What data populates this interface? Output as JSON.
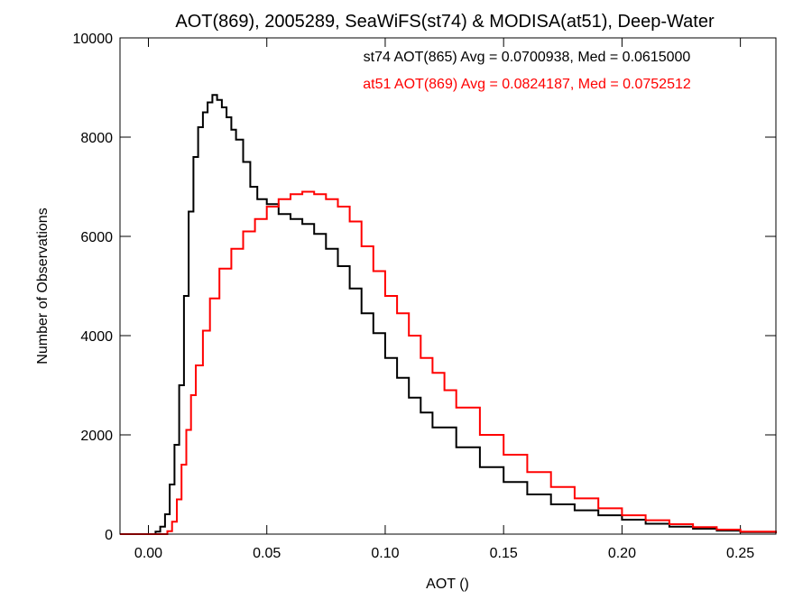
{
  "chart_data": {
    "type": "line",
    "title": "AOT(869), 2005289, SeaWiFS(st74) & MODISA(at51), Deep-Water",
    "xlabel": "AOT ()",
    "ylabel": "Number of Observations",
    "xlim": [
      -0.012,
      0.265
    ],
    "ylim": [
      0,
      10000
    ],
    "xticks": [
      0.0,
      0.05,
      0.1,
      0.15,
      0.2,
      0.25
    ],
    "xtick_labels": [
      "0.00",
      "0.05",
      "0.10",
      "0.15",
      "0.20",
      "0.25"
    ],
    "yticks": [
      0,
      2000,
      4000,
      6000,
      8000,
      10000
    ],
    "ytick_labels": [
      "0",
      "2000",
      "4000",
      "6000",
      "8000",
      "10000"
    ],
    "grid": false,
    "legend_placement": "top-center",
    "annotations": [
      {
        "text": "st74 AOT(865) Avg = 0.0700938, Med = 0.0615000",
        "color": "#000000"
      },
      {
        "text": "at51 AOT(869) Avg = 0.0824187, Med = 0.0752512",
        "color": "#ff0000"
      }
    ],
    "series": [
      {
        "color": "#000000",
        "x": [
          -0.012,
          0.0,
          0.003,
          0.005,
          0.007,
          0.009,
          0.011,
          0.013,
          0.015,
          0.017,
          0.019,
          0.021,
          0.023,
          0.025,
          0.027,
          0.029,
          0.031,
          0.033,
          0.035,
          0.037,
          0.04,
          0.043,
          0.046,
          0.05,
          0.055,
          0.06,
          0.065,
          0.07,
          0.075,
          0.08,
          0.085,
          0.09,
          0.095,
          0.1,
          0.105,
          0.11,
          0.115,
          0.12,
          0.13,
          0.14,
          0.15,
          0.16,
          0.17,
          0.18,
          0.19,
          0.2,
          0.21,
          0.22,
          0.23,
          0.24,
          0.25,
          0.265
        ],
        "y": [
          0,
          0,
          50,
          150,
          400,
          1000,
          1800,
          3000,
          4800,
          6500,
          7600,
          8200,
          8500,
          8700,
          8850,
          8750,
          8600,
          8400,
          8150,
          7950,
          7500,
          7000,
          6750,
          6650,
          6450,
          6350,
          6250,
          6050,
          5750,
          5400,
          4950,
          4450,
          4050,
          3550,
          3150,
          2750,
          2450,
          2150,
          1750,
          1350,
          1050,
          800,
          600,
          480,
          380,
          290,
          210,
          150,
          110,
          70,
          40,
          20
        ]
      },
      {
        "color": "#ff0000",
        "x": [
          -0.012,
          0.0,
          0.005,
          0.008,
          0.01,
          0.012,
          0.014,
          0.016,
          0.018,
          0.02,
          0.023,
          0.026,
          0.03,
          0.035,
          0.04,
          0.045,
          0.05,
          0.055,
          0.06,
          0.065,
          0.07,
          0.075,
          0.08,
          0.085,
          0.09,
          0.095,
          0.1,
          0.105,
          0.11,
          0.115,
          0.12,
          0.125,
          0.13,
          0.14,
          0.15,
          0.16,
          0.17,
          0.18,
          0.19,
          0.2,
          0.21,
          0.22,
          0.23,
          0.24,
          0.25,
          0.265
        ],
        "y": [
          0,
          0,
          0,
          60,
          250,
          700,
          1400,
          2100,
          2800,
          3400,
          4100,
          4750,
          5350,
          5750,
          6100,
          6350,
          6600,
          6750,
          6850,
          6900,
          6850,
          6750,
          6600,
          6300,
          5800,
          5300,
          4800,
          4450,
          4000,
          3550,
          3250,
          2900,
          2550,
          2000,
          1600,
          1250,
          950,
          720,
          520,
          380,
          280,
          200,
          140,
          90,
          50,
          25
        ]
      }
    ]
  }
}
